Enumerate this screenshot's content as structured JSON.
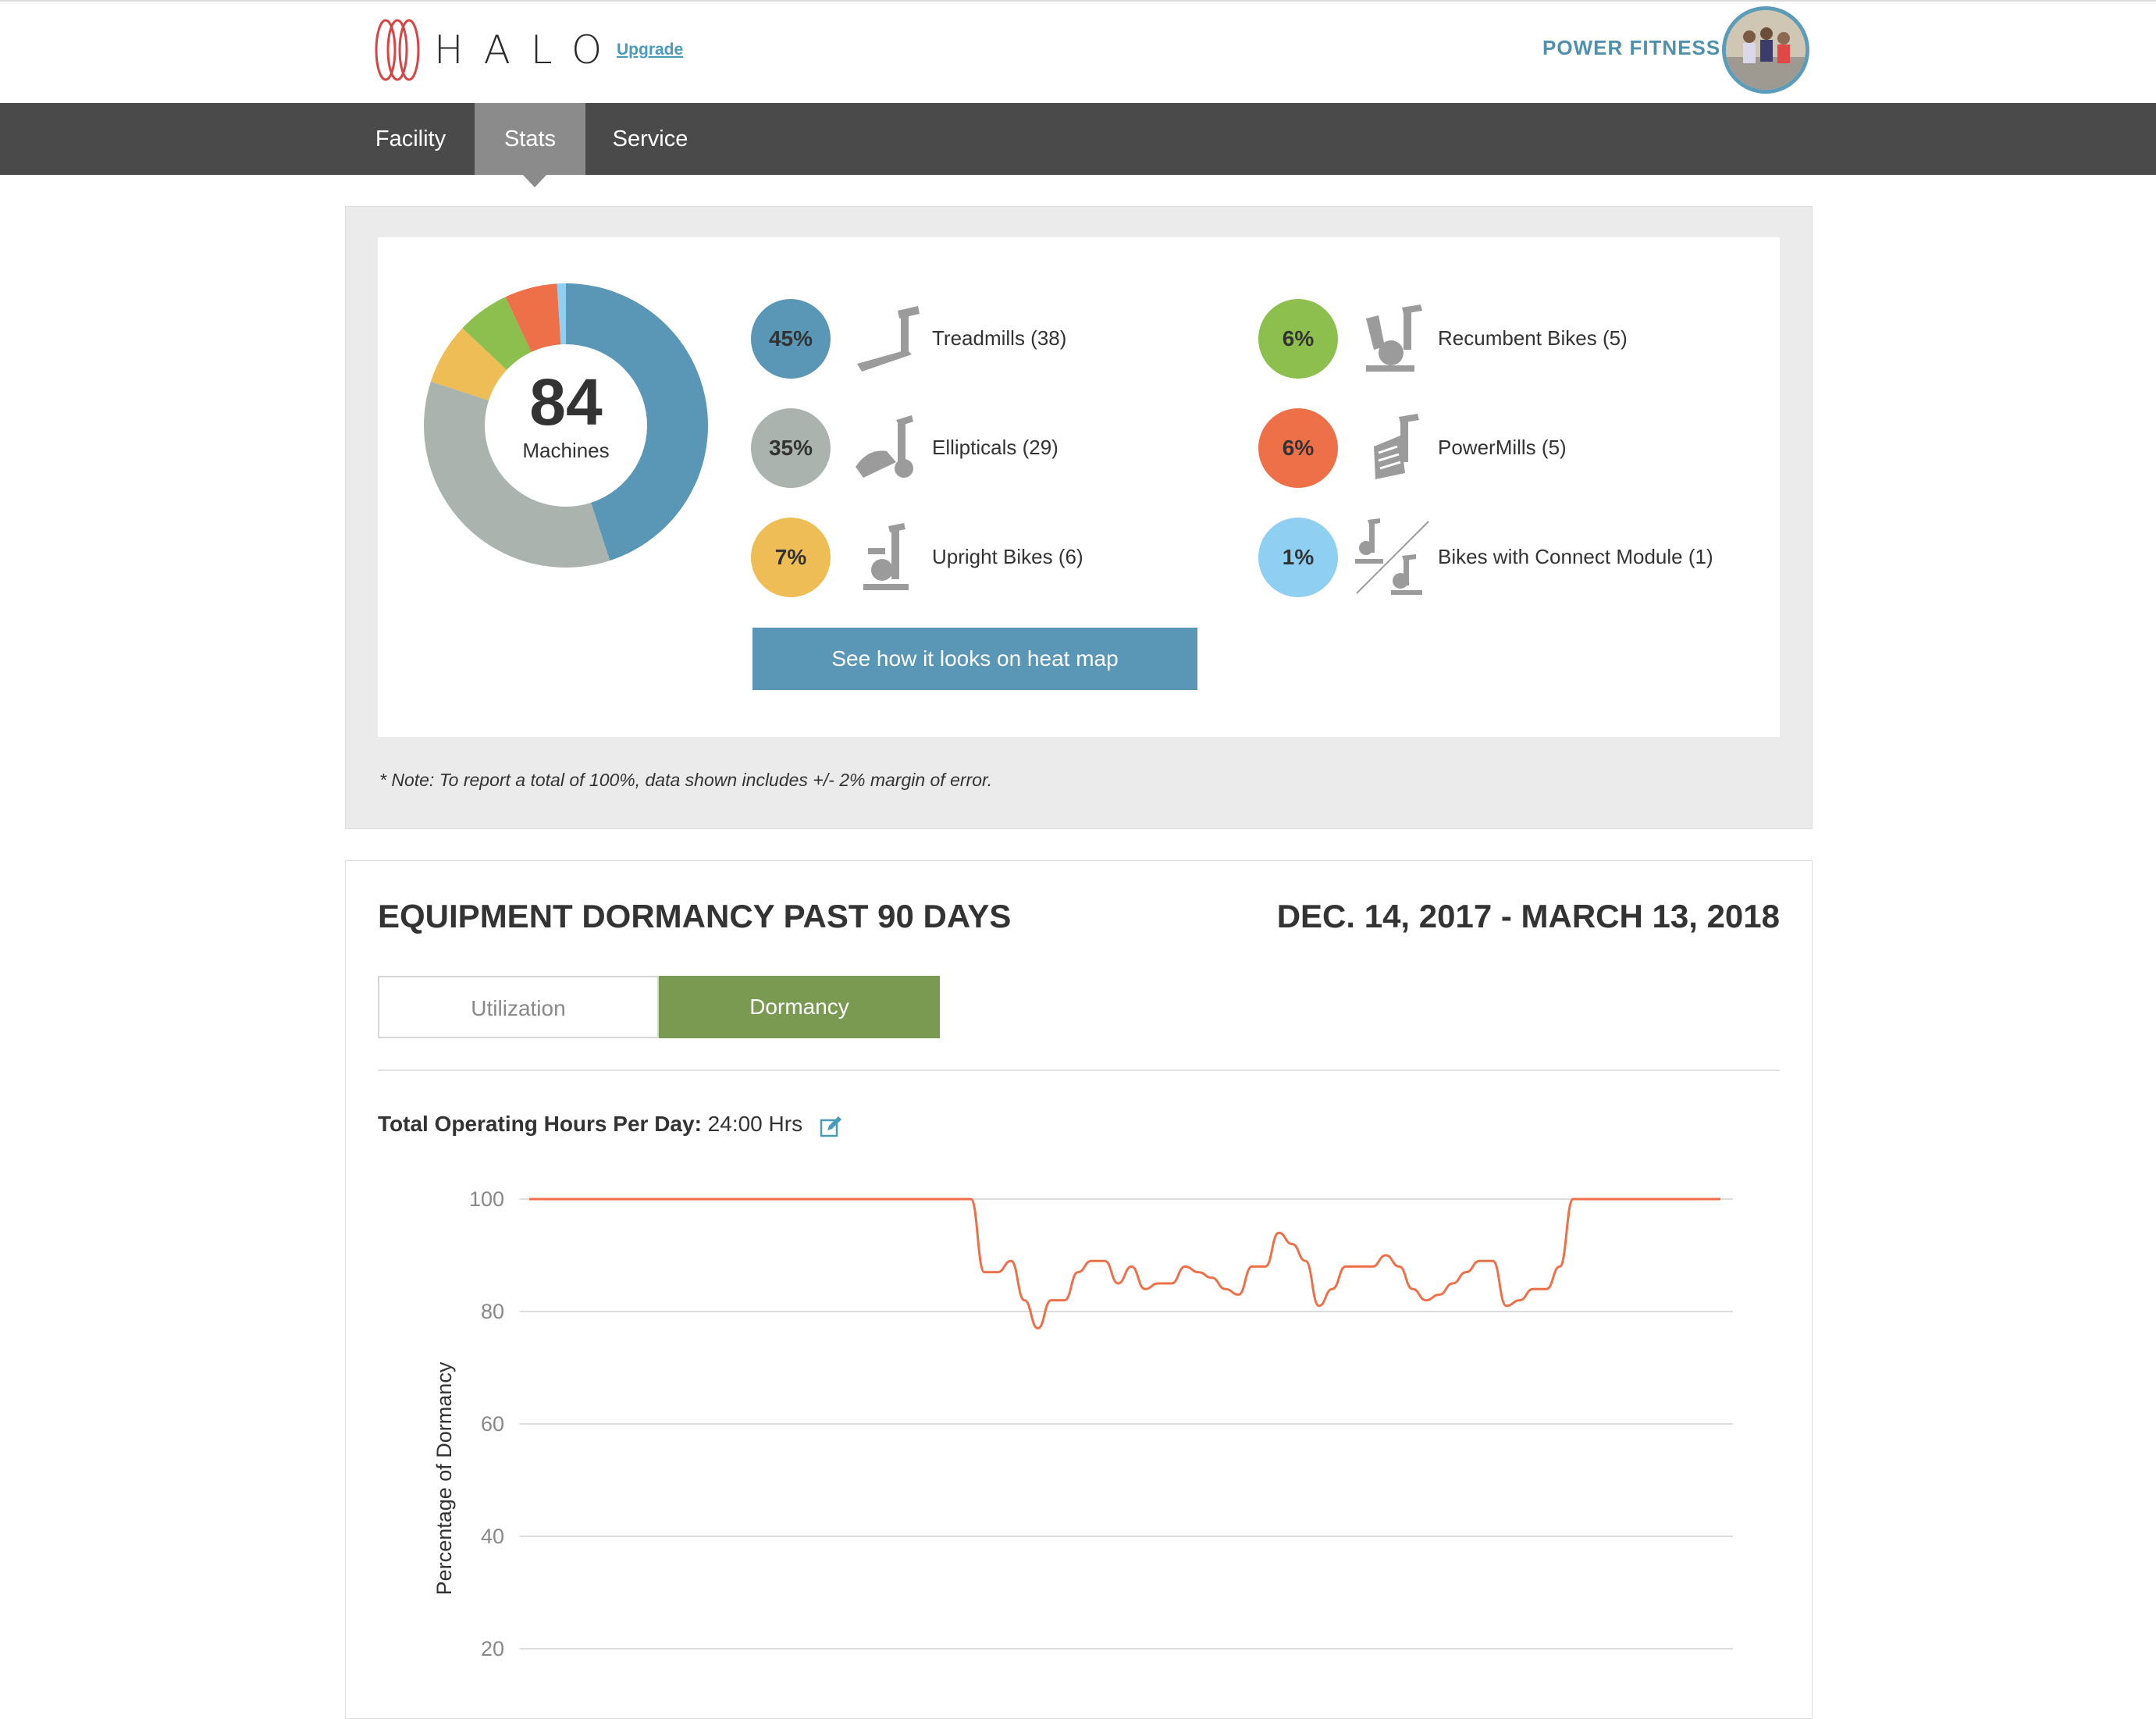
{
  "header": {
    "logo_text": "HALO",
    "upgrade_label": "Upgrade",
    "brand_name": "POWER FITNESS"
  },
  "nav": {
    "items": [
      {
        "label": "Facility",
        "active": false
      },
      {
        "label": "Stats",
        "active": true
      },
      {
        "label": "Service",
        "active": false
      }
    ]
  },
  "summary": {
    "total": "84",
    "total_label": "Machines",
    "equipment": [
      {
        "pct": "45%",
        "label": "Treadmills (38)",
        "color": "#5a96b5",
        "value": 45,
        "icon": "treadmill-icon"
      },
      {
        "pct": "35%",
        "label": "Ellipticals (29)",
        "color": "#aab3ae",
        "value": 35,
        "icon": "elliptical-icon"
      },
      {
        "pct": "7%",
        "label": "Upright Bikes (6)",
        "color": "#eebd55",
        "value": 7,
        "icon": "upright-bike-icon"
      },
      {
        "pct": "6%",
        "label": "Recumbent Bikes (5)",
        "color": "#8dbf4f",
        "value": 6,
        "icon": "recumbent-bike-icon"
      },
      {
        "pct": "6%",
        "label": "PowerMills (5)",
        "color": "#ee7049",
        "value": 6,
        "icon": "powermill-icon"
      },
      {
        "pct": "1%",
        "label": "Bikes with Connect Module (1)",
        "color": "#8fcff1",
        "value": 1,
        "icon": "connect-module-bike-icon"
      }
    ],
    "heatmap_button": "See how it looks on heat map",
    "note": "* Note: To report a total of 100%, data shown includes +/- 2% margin of error."
  },
  "dormancy": {
    "title": "EQUIPMENT DORMANCY PAST 90 DAYS",
    "date_range": "DEC. 14, 2017 - MARCH 13, 2018",
    "tabs": [
      {
        "label": "Utilization",
        "active": false
      },
      {
        "label": "Dormancy",
        "active": true
      }
    ],
    "hours_label": "Total Operating Hours Per Day:",
    "hours_value": "24:00 Hrs"
  },
  "chart_data": {
    "type": "line",
    "ylabel": "Percentage of Dormancy",
    "y_ticks": [
      100,
      80,
      60,
      40,
      20
    ],
    "ylim": [
      20,
      100
    ],
    "grid": true,
    "line_color": "#ee7049",
    "x": [
      1,
      2,
      3,
      4,
      5,
      6,
      7,
      8,
      9,
      10,
      11,
      12,
      13,
      14,
      15,
      16,
      17,
      18,
      19,
      20,
      21,
      22,
      23,
      24,
      25,
      26,
      27,
      28,
      29,
      30,
      31,
      32,
      33,
      34,
      35,
      36,
      37,
      38,
      39,
      40,
      41,
      42,
      43,
      44,
      45,
      46,
      47,
      48,
      49,
      50,
      51,
      52,
      53,
      54,
      55,
      56,
      57,
      58,
      59,
      60,
      61,
      62,
      63,
      64,
      65,
      66,
      67,
      68,
      69,
      70,
      71,
      72,
      73,
      74,
      75,
      76,
      77,
      78,
      79,
      80,
      81,
      82,
      83,
      84,
      85,
      86,
      87,
      88,
      89,
      90
    ],
    "values": [
      100,
      100,
      100,
      100,
      100,
      100,
      100,
      100,
      100,
      100,
      100,
      100,
      100,
      100,
      100,
      100,
      100,
      100,
      100,
      100,
      100,
      100,
      100,
      100,
      100,
      100,
      100,
      100,
      100,
      100,
      100,
      100,
      100,
      100,
      87,
      87,
      89,
      82,
      77,
      82,
      82,
      87,
      89,
      89,
      85,
      88,
      84,
      85,
      85,
      88,
      87,
      86,
      84,
      83,
      88,
      88,
      94,
      92,
      89,
      81,
      84,
      88,
      88,
      88,
      90,
      88,
      84,
      82,
      83,
      85,
      87,
      89,
      89,
      81,
      82,
      84,
      84,
      88,
      100,
      100,
      100,
      100,
      100,
      100,
      100,
      100,
      100,
      100,
      100,
      100
    ]
  }
}
